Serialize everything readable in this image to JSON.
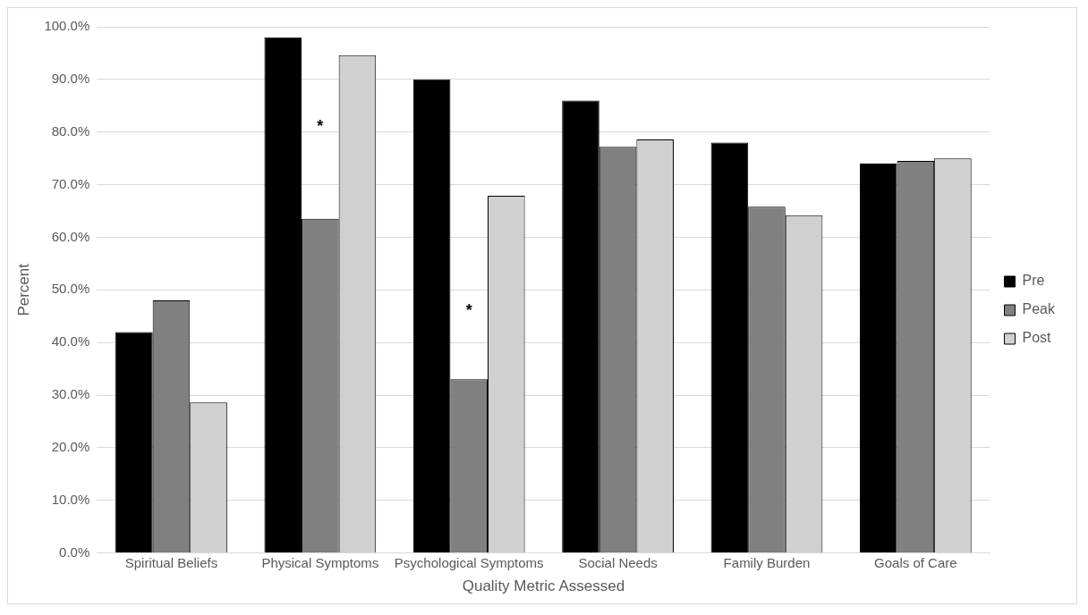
{
  "chart_data": {
    "type": "bar",
    "xlabel": "Quality Metric Assessed",
    "ylabel": "Percent",
    "categories": [
      "Spiritual Beliefs",
      "Physical Symptoms",
      "Psychological Symptoms",
      "Social Needs",
      "Family Burden",
      "Goals of Care"
    ],
    "series": [
      {
        "name": "Pre",
        "color": "#000000",
        "values": [
          42,
          98,
          90,
          86,
          78,
          74
        ]
      },
      {
        "name": "Peak",
        "color": "#808080",
        "values": [
          48,
          63.5,
          33,
          77.2,
          65.8,
          74.5
        ]
      },
      {
        "name": "Post",
        "color": "#d0d0d0",
        "values": [
          28.6,
          94.6,
          67.9,
          78.6,
          64.2,
          75
        ]
      }
    ],
    "ylim": [
      0,
      100
    ],
    "yticks": [
      {
        "value": 0,
        "label": "0.0%"
      },
      {
        "value": 10,
        "label": "10.0%"
      },
      {
        "value": 20,
        "label": "20.0%"
      },
      {
        "value": 30,
        "label": "30.0%"
      },
      {
        "value": 40,
        "label": "40.0%"
      },
      {
        "value": 50,
        "label": "50.0%"
      },
      {
        "value": 60,
        "label": "60.0%"
      },
      {
        "value": 70,
        "label": "70.0%"
      },
      {
        "value": 80,
        "label": "80.0%"
      },
      {
        "value": 90,
        "label": "90.0%"
      },
      {
        "value": 100,
        "label": "100.0%"
      }
    ],
    "annotations": [
      "*",
      "*"
    ],
    "grid": "y",
    "legend": "right"
  }
}
